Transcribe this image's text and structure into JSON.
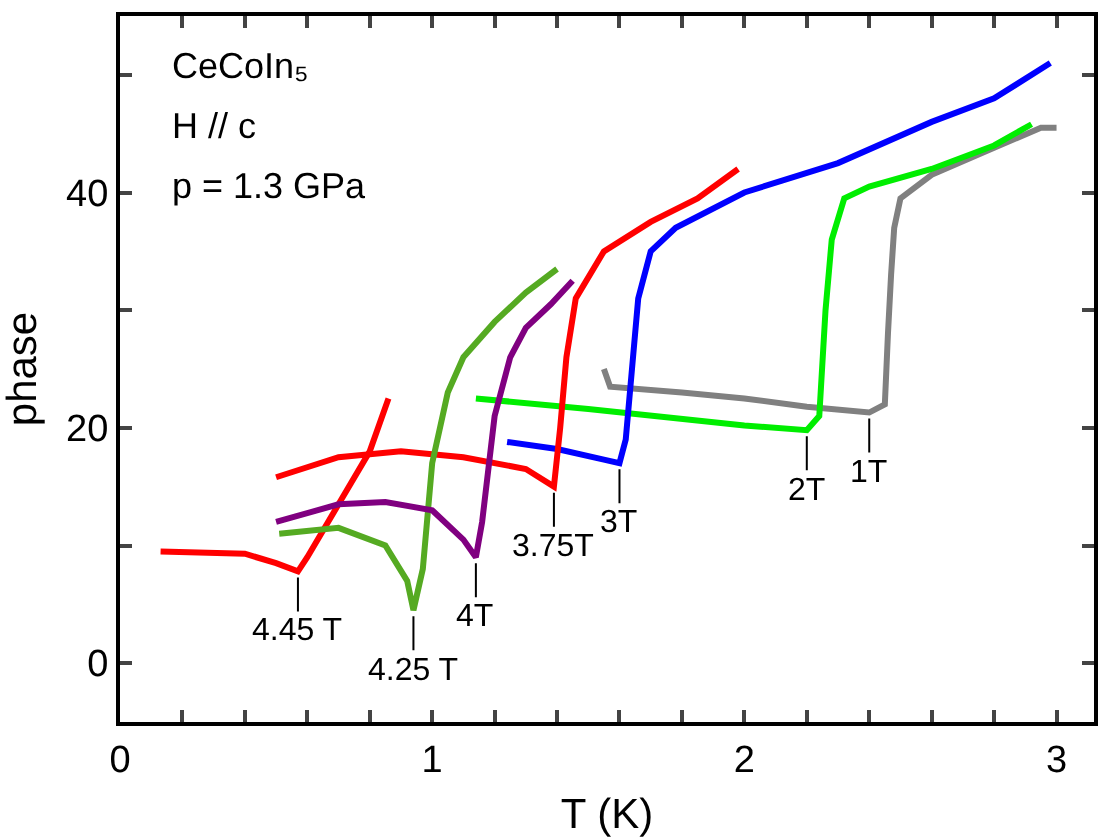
{
  "chart_data": {
    "type": "line",
    "xlabel": "T (K)",
    "ylabel": "phase",
    "xlim": [
      0,
      3.12
    ],
    "ylim": [
      -5,
      55
    ],
    "xticks": [
      0,
      {
        "value": 0.2,
        "label": null
      },
      {
        "value": 0.4,
        "label": null
      },
      {
        "value": 0.6,
        "label": null
      },
      {
        "value": 0.8,
        "label": null
      },
      1,
      {
        "value": 1.2,
        "label": null
      },
      {
        "value": 1.4,
        "label": null
      },
      {
        "value": 1.6,
        "label": null
      },
      {
        "value": 1.8,
        "label": null
      },
      2,
      {
        "value": 2.2,
        "label": null
      },
      {
        "value": 2.4,
        "label": null
      },
      {
        "value": 2.6,
        "label": null
      },
      {
        "value": 2.8,
        "label": null
      },
      3
    ],
    "yticks": [
      0,
      {
        "value": 10,
        "label": null
      },
      20,
      {
        "value": 30,
        "label": null
      },
      40,
      {
        "value": 50,
        "label": null
      }
    ],
    "grid": false,
    "legend": false,
    "marker": "none",
    "line_style": "solid",
    "series": [
      {
        "name": "1T",
        "color": "#808080",
        "x": [
          1.55,
          1.57,
          1.8,
          2.0,
          2.2,
          2.4,
          2.45,
          2.46,
          2.47,
          2.48,
          2.5,
          2.6,
          2.8,
          2.95,
          3.0
        ],
        "values": [
          25,
          23.5,
          23,
          22.5,
          21.8,
          21.3,
          22,
          28,
          33,
          37,
          39.5,
          41.5,
          43.8,
          45.5,
          45.5
        ]
      },
      {
        "name": "2T",
        "color": "#00ee00",
        "x": [
          1.14,
          1.5,
          2.0,
          2.2,
          2.24,
          2.26,
          2.28,
          2.32,
          2.4,
          2.6,
          2.8,
          2.92
        ],
        "values": [
          22.5,
          21.6,
          20.2,
          19.8,
          21,
          30,
          36,
          39.5,
          40.5,
          42,
          44,
          45.8
        ]
      },
      {
        "name": "3T",
        "color": "#0000ff",
        "x": [
          1.24,
          1.4,
          1.55,
          1.6,
          1.62,
          1.64,
          1.66,
          1.7,
          1.78,
          2.0,
          2.3,
          2.6,
          2.8,
          2.98
        ],
        "values": [
          18.8,
          18.2,
          17.3,
          17,
          19,
          25,
          31,
          35,
          37,
          40,
          42.5,
          46,
          48,
          51
        ]
      },
      {
        "name": "3.75T",
        "color": "#ff0000",
        "x": [
          0.5,
          0.7,
          0.9,
          1.1,
          1.3,
          1.39,
          1.41,
          1.43,
          1.46,
          1.55,
          1.7,
          1.85,
          1.98
        ],
        "values": [
          15.8,
          17.5,
          18,
          17.5,
          16.5,
          15,
          20,
          26,
          31,
          35,
          37.5,
          39.5,
          42
        ]
      },
      {
        "name": "4.45 T",
        "color": "#ff0000",
        "x": [
          0.13,
          0.4,
          0.5,
          0.57,
          0.6,
          0.7,
          0.8,
          0.86
        ],
        "values": [
          9.5,
          9.3,
          8.5,
          7.8,
          9,
          13.5,
          18,
          22.5
        ]
      },
      {
        "name": "4.25 T",
        "color": "#55aa22",
        "x": [
          0.51,
          0.7,
          0.85,
          0.92,
          0.94,
          0.97,
          1.0,
          1.05,
          1.1,
          1.2,
          1.3,
          1.4
        ],
        "values": [
          11,
          11.5,
          10,
          7,
          4.5,
          8,
          17,
          23,
          26,
          29,
          31.5,
          33.5
        ]
      },
      {
        "name": "4T",
        "color": "#800080",
        "x": [
          0.5,
          0.7,
          0.85,
          1.0,
          1.1,
          1.14,
          1.16,
          1.2,
          1.25,
          1.3,
          1.38,
          1.45
        ],
        "values": [
          12,
          13.5,
          13.7,
          13,
          10.5,
          9,
          12,
          21,
          26,
          28.5,
          30.5,
          32.5
        ]
      }
    ],
    "annotations": [
      "CeCoIn₅",
      "H // c",
      "p = 1.3 GPa"
    ]
  }
}
